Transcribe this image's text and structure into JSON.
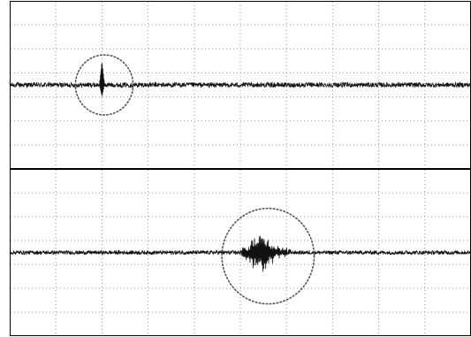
{
  "chart_data": [
    {
      "type": "line",
      "grid": true,
      "divisions": {
        "x": 10,
        "y": 7
      },
      "ylim": [
        -3.5,
        3.5
      ],
      "xlim": [
        0,
        10
      ],
      "baseline": 0,
      "noise_amplitude": 0.1,
      "events": [
        {
          "kind": "spike",
          "x": 2.0,
          "peak": 1.0,
          "min": -0.5
        }
      ],
      "annotations": [
        {
          "kind": "dotted-circle",
          "cx": 2.05,
          "cy": 0,
          "rx": 1.25,
          "ry": 1.25
        }
      ],
      "colors": {
        "trace": "#111111",
        "grid": "#9a9a9a",
        "annotation": "#555555"
      }
    },
    {
      "type": "line",
      "grid": true,
      "divisions": {
        "x": 10,
        "y": 7
      },
      "ylim": [
        -3.5,
        3.5
      ],
      "xlim": [
        0,
        10
      ],
      "baseline": 0,
      "noise_amplitude": 0.08,
      "events": [
        {
          "kind": "burst",
          "x_start": 4.95,
          "x_end": 6.1,
          "peak_x": 5.45,
          "amplitude": 1.0
        }
      ],
      "annotations": [
        {
          "kind": "dotted-circle",
          "cx": 5.6,
          "cy": -0.15,
          "rx": 2.0,
          "ry": 2.0
        }
      ],
      "colors": {
        "trace": "#111111",
        "grid": "#9a9a9a",
        "annotation": "#555555"
      }
    }
  ]
}
